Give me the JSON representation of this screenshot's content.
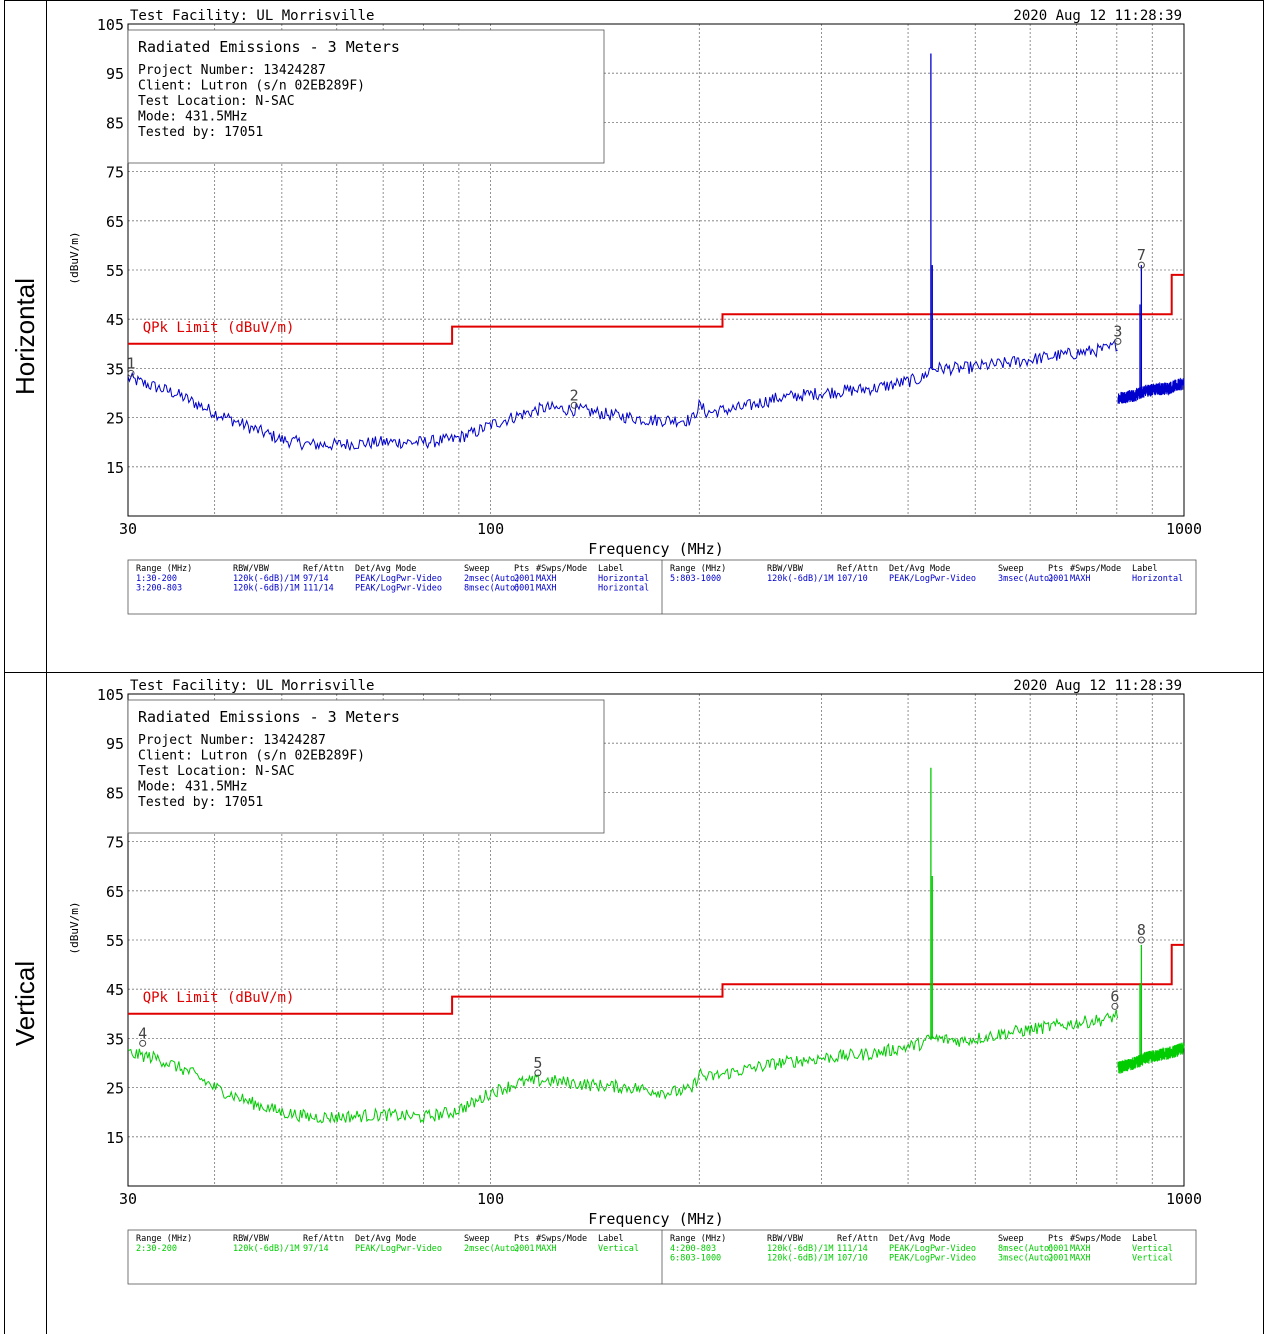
{
  "table": {
    "row_labels": [
      "Horizontal",
      "Vertical"
    ]
  },
  "chart_data": [
    {
      "type": "line",
      "header": {
        "facility": "Test Facility:  UL Morrisville",
        "datetime": "2020 Aug 12    11:28:39"
      },
      "info": {
        "title": "Radiated Emissions - 3 Meters",
        "lines": [
          "Project Number: 13424287",
          "Client: Lutron (s/n 02EB289F)",
          "Test Location: N-SAC",
          "Mode: 431.5MHz",
          "Tested by: 17051"
        ]
      },
      "xlabel": "Frequency (MHz)",
      "ylabel": "(dBuV/m)",
      "xscale": "log",
      "xlim": [
        30,
        1000
      ],
      "ylim": [
        5,
        105
      ],
      "yticks": [
        15,
        25,
        35,
        45,
        55,
        65,
        75,
        85,
        95,
        105
      ],
      "xticks": [
        {
          "v": 30,
          "label": "30"
        },
        {
          "v": 100,
          "label": "100"
        },
        {
          "v": 1000,
          "label": "1000"
        }
      ],
      "grid": true,
      "trace_color": "#0000cc",
      "limit": {
        "name": "QPk Limit (dBuV/m)",
        "color": "#e00000",
        "steps": [
          {
            "x0": 30,
            "x1": 88,
            "y": 40
          },
          {
            "x0": 88,
            "x1": 216,
            "y": 43.5
          },
          {
            "x0": 216,
            "x1": 960,
            "y": 46
          },
          {
            "x0": 960,
            "x1": 1000,
            "y": 54
          }
        ]
      },
      "series": [
        {
          "values": [
            [
              30,
              33
            ],
            [
              35,
              30
            ],
            [
              40,
              26
            ],
            [
              45,
              23
            ],
            [
              50,
              20.5
            ],
            [
              55,
              19.5
            ],
            [
              60,
              19.5
            ],
            [
              70,
              20
            ],
            [
              80,
              20
            ],
            [
              88,
              20.5
            ],
            [
              95,
              22
            ],
            [
              100,
              23.5
            ],
            [
              110,
              25.5
            ],
            [
              120,
              27
            ],
            [
              135,
              26.5
            ],
            [
              150,
              25.5
            ],
            [
              170,
              24.5
            ],
            [
              195,
              24.5
            ],
            [
              200,
              27.5
            ],
            [
              205,
              26
            ],
            [
              230,
              27
            ],
            [
              260,
              29
            ],
            [
              300,
              30
            ],
            [
              360,
              31
            ],
            [
              420,
              33
            ],
            [
              431.5,
              35
            ],
            [
              480,
              35
            ],
            [
              550,
              36
            ],
            [
              650,
              37.5
            ],
            [
              780,
              39
            ],
            [
              802,
              40
            ]
          ]
        },
        {
          "values": [
            [
              803,
              29
            ],
            [
              850,
              29.5
            ],
            [
              880,
              30.5
            ],
            [
              950,
              31
            ],
            [
              1000,
              32
            ]
          ]
        }
      ],
      "spikes": [
        {
          "x": 431.5,
          "y": 99
        },
        {
          "x": 433.5,
          "y": 56
        },
        {
          "x": 868,
          "y": 56
        },
        {
          "x": 864,
          "y": 48
        }
      ],
      "markers": [
        {
          "label": "1",
          "x": 30.3,
          "y": 34
        },
        {
          "label": "2",
          "x": 132,
          "y": 27.5
        },
        {
          "label": "3",
          "x": 803,
          "y": 40.5
        },
        {
          "label": "7",
          "x": 868,
          "y": 56
        }
      ],
      "settings": {
        "headers": [
          "Range (MHz)",
          "RBW/VBW",
          "Ref/Attn",
          "Det/Avg Mode",
          "Sweep",
          "Pts",
          "#Swps/Mode",
          "Label"
        ],
        "left": [
          [
            "1:30-200",
            "120k(-6dB)/1M",
            "97/14",
            "PEAK/LogPwr-Video",
            "2msec(Auto)",
            "2001",
            "MAXH",
            "Horizontal"
          ],
          [
            "3:200-803",
            "120k(-6dB)/1M",
            "111/14",
            "PEAK/LogPwr-Video",
            "8msec(Auto)",
            "6001",
            "MAXH",
            "Horizontal"
          ]
        ],
        "right": [
          [
            "5:803-1000",
            "120k(-6dB)/1M",
            "107/10",
            "PEAK/LogPwr-Video",
            "3msec(Auto)",
            "2001",
            "MAXH",
            "Horizontal"
          ]
        ]
      }
    },
    {
      "type": "line",
      "header": {
        "facility": "Test Facility:  UL Morrisville",
        "datetime": "2020 Aug 12    11:28:39"
      },
      "info": {
        "title": "Radiated Emissions - 3 Meters",
        "lines": [
          "Project Number: 13424287",
          "Client: Lutron (s/n 02EB289F)",
          "Test Location: N-SAC",
          "Mode: 431.5MHz",
          "Tested by: 17051"
        ]
      },
      "xlabel": "Frequency (MHz)",
      "ylabel": "(dBuV/m)",
      "xscale": "log",
      "xlim": [
        30,
        1000
      ],
      "ylim": [
        5,
        105
      ],
      "yticks": [
        15,
        25,
        35,
        45,
        55,
        65,
        75,
        85,
        95,
        105
      ],
      "xticks": [
        {
          "v": 30,
          "label": "30"
        },
        {
          "v": 100,
          "label": "100"
        },
        {
          "v": 1000,
          "label": "1000"
        }
      ],
      "grid": true,
      "trace_color": "#00cc00",
      "limit": {
        "name": "QPk Limit (dBuV/m)",
        "color": "#e00000",
        "steps": [
          {
            "x0": 30,
            "x1": 88,
            "y": 40
          },
          {
            "x0": 88,
            "x1": 216,
            "y": 43.5
          },
          {
            "x0": 216,
            "x1": 960,
            "y": 46
          },
          {
            "x0": 960,
            "x1": 1000,
            "y": 54
          }
        ]
      },
      "series": [
        {
          "values": [
            [
              30,
              32
            ],
            [
              33,
              31
            ],
            [
              37,
              28
            ],
            [
              40,
              25
            ],
            [
              45,
              22
            ],
            [
              50,
              20
            ],
            [
              55,
              19
            ],
            [
              60,
              19
            ],
            [
              70,
              19.5
            ],
            [
              80,
              19
            ],
            [
              88,
              20
            ],
            [
              95,
              22
            ],
            [
              100,
              24
            ],
            [
              110,
              26
            ],
            [
              120,
              26.5
            ],
            [
              140,
              25.5
            ],
            [
              160,
              25
            ],
            [
              180,
              24
            ],
            [
              195,
              24.5
            ],
            [
              200,
              28
            ],
            [
              205,
              27
            ],
            [
              230,
              28.5
            ],
            [
              260,
              30
            ],
            [
              300,
              31
            ],
            [
              360,
              32
            ],
            [
              420,
              34
            ],
            [
              431.5,
              35
            ],
            [
              480,
              34.5
            ],
            [
              550,
              36
            ],
            [
              650,
              37.5
            ],
            [
              780,
              39
            ],
            [
              802,
              40
            ]
          ]
        },
        {
          "values": [
            [
              803,
              29
            ],
            [
              850,
              30
            ],
            [
              880,
              31
            ],
            [
              950,
              32
            ],
            [
              1000,
              33
            ]
          ]
        }
      ],
      "spikes": [
        {
          "x": 431.5,
          "y": 90
        },
        {
          "x": 433.5,
          "y": 68
        },
        {
          "x": 868,
          "y": 54
        },
        {
          "x": 864,
          "y": 46
        }
      ],
      "markers": [
        {
          "label": "4",
          "x": 31.5,
          "y": 34
        },
        {
          "label": "5",
          "x": 117,
          "y": 28
        },
        {
          "label": "6",
          "x": 795,
          "y": 41.5
        },
        {
          "label": "8",
          "x": 868,
          "y": 55
        }
      ],
      "settings": {
        "headers": [
          "Range (MHz)",
          "RBW/VBW",
          "Ref/Attn",
          "Det/Avg Mode",
          "Sweep",
          "Pts",
          "#Swps/Mode",
          "Label"
        ],
        "left": [
          [
            "2:30-200",
            "120k(-6dB)/1M",
            "97/14",
            "PEAK/LogPwr-Video",
            "2msec(Auto)",
            "2001",
            "MAXH",
            "Vertical"
          ]
        ],
        "right": [
          [
            "4:200-803",
            "120k(-6dB)/1M",
            "111/14",
            "PEAK/LogPwr-Video",
            "8msec(Auto)",
            "6001",
            "MAXH",
            "Vertical"
          ],
          [
            "6:803-1000",
            "120k(-6dB)/1M",
            "107/10",
            "PEAK/LogPwr-Video",
            "3msec(Auto)",
            "2001",
            "MAXH",
            "Vertical"
          ]
        ]
      }
    }
  ]
}
